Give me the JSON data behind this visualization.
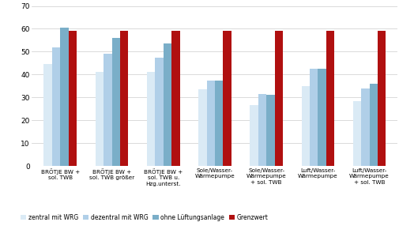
{
  "categories": [
    "BRÖTJE BW +\nsol. TWB",
    "BRÖTJE BW +\nsol. TWB größer",
    "BRÖTJE BW +\nsol. TWB u.\nHzg.unterst.",
    "Sole/Wasser-\nWärmepumpe",
    "Sole/Wasser-\nWärmepumpe\n+ sol. TWB",
    "Luft/Wasser-\nWärmepumpe",
    "Luft/Wasser-\nWärmepumpe\n+ sol. TWB"
  ],
  "series": {
    "zentral mit WRG": [
      44.5,
      41.0,
      41.0,
      33.5,
      26.5,
      35.0,
      28.5
    ],
    "dezentral mit WRG": [
      52.0,
      49.0,
      47.5,
      37.5,
      31.5,
      42.5,
      34.0
    ],
    "ohne Lüftungsanlage": [
      60.5,
      56.0,
      53.5,
      37.5,
      31.0,
      42.5,
      36.0
    ],
    "Grenzwert": [
      59.0,
      59.0,
      59.0,
      59.0,
      59.0,
      59.0,
      59.0
    ]
  },
  "colors": {
    "zentral mit WRG": "#daeaf5",
    "dezentral mit WRG": "#b0cfe8",
    "ohne Lüftungsanlage": "#7aaec8",
    "Grenzwert": "#b01010"
  },
  "ylim": [
    0,
    70
  ],
  "yticks": [
    0,
    10,
    20,
    30,
    40,
    50,
    60,
    70
  ],
  "background_color": "#ffffff",
  "grid_color": "#cccccc",
  "bar_width": 0.16,
  "legend_labels": [
    "zentral mit WRG",
    "dezentral mit WRG",
    "ohne Lüftungsanlage",
    "Grenzwert"
  ]
}
